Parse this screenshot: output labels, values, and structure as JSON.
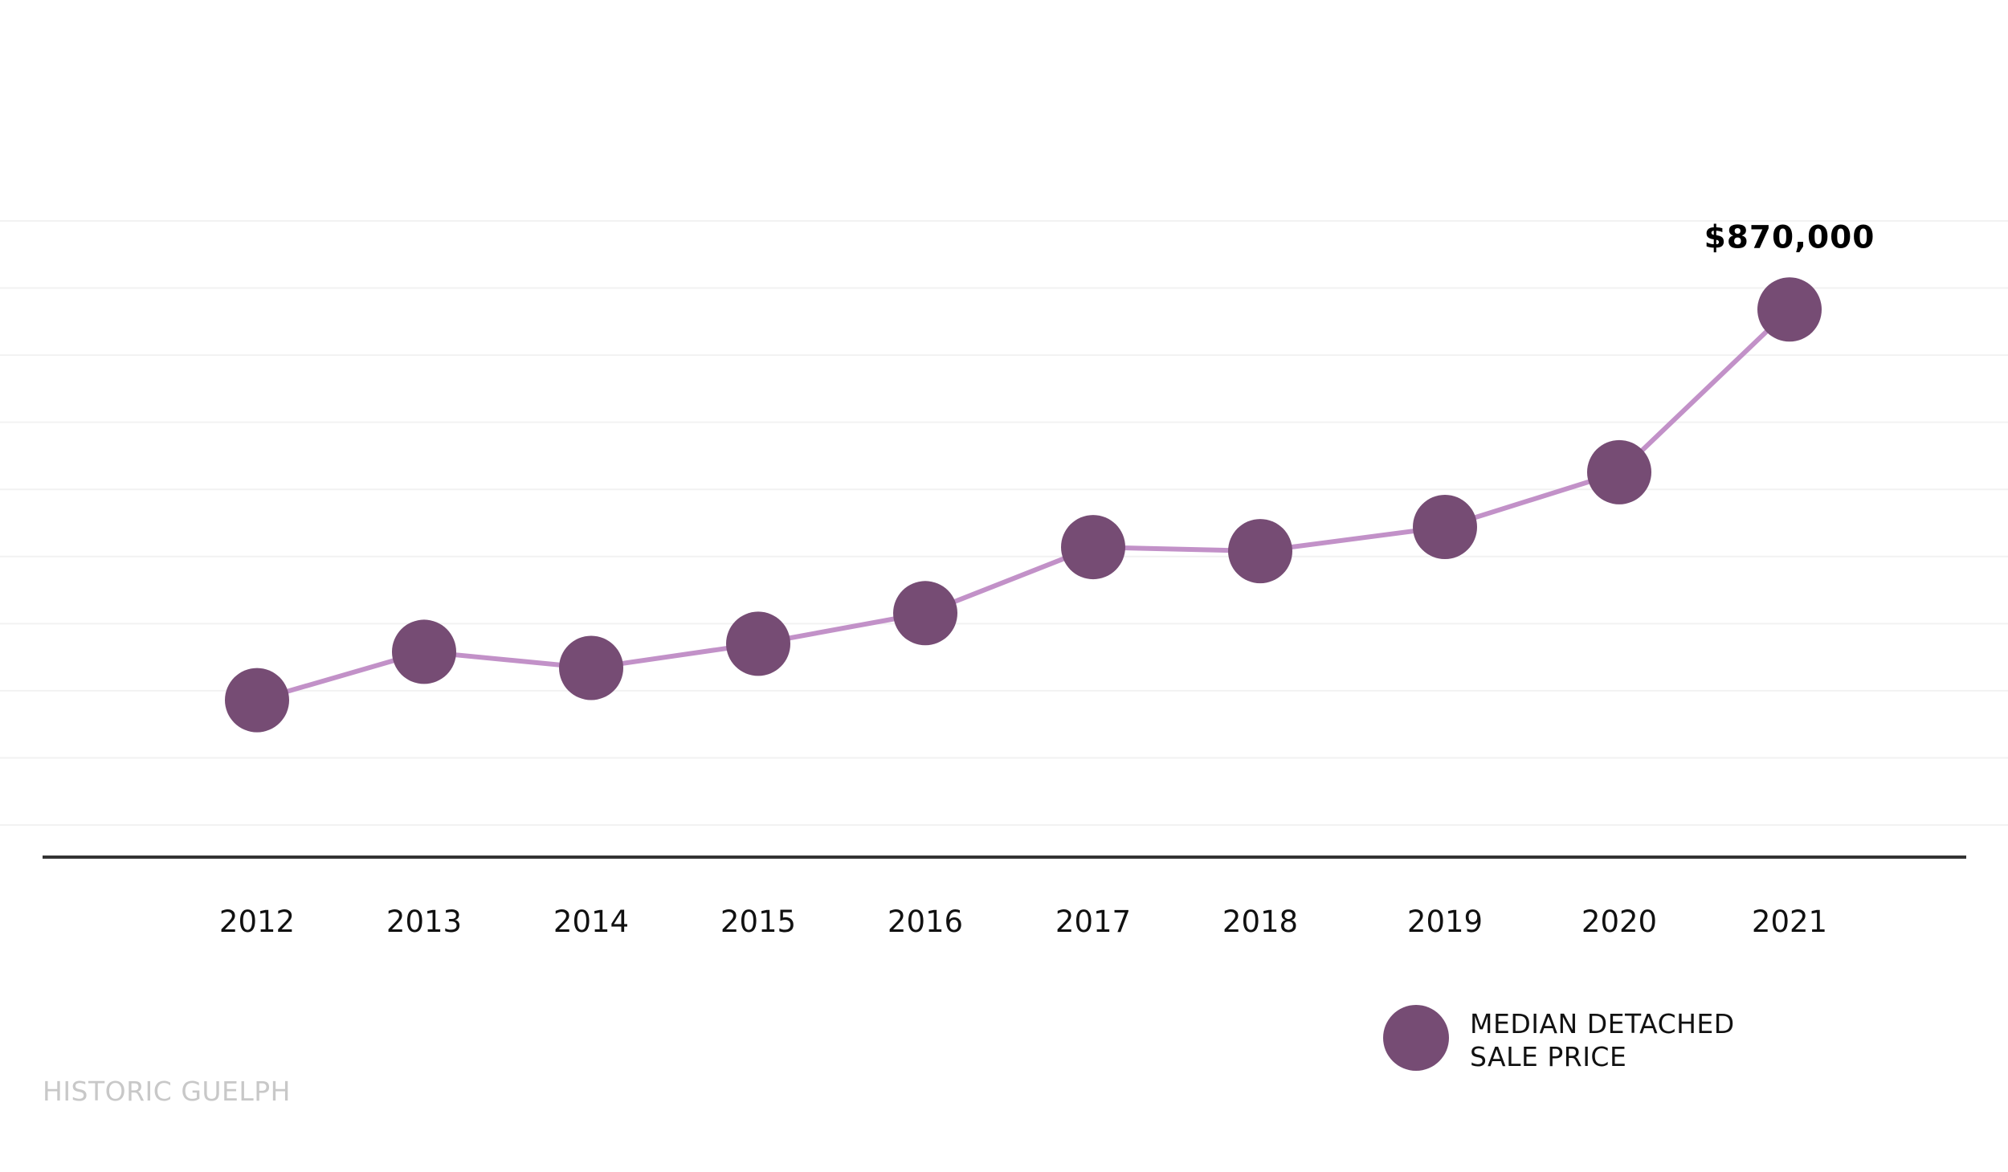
{
  "chart_data": {
    "type": "line",
    "x": [
      "2012",
      "2013",
      "2014",
      "2015",
      "2016",
      "2017",
      "2018",
      "2019",
      "2020",
      "2021"
    ],
    "series": [
      {
        "name": "MEDIAN DETACHED SALE PRICE",
        "values": [
          385000,
          445000,
          425000,
          455000,
          493000,
          575000,
          570000,
          600000,
          668000,
          870000
        ],
        "data_labels": {
          "9": "$870,000"
        }
      }
    ],
    "legend": {
      "position": "bottom-right",
      "lines": [
        "MEDIAN DETACHED",
        "SALE PRICE"
      ]
    },
    "ylim": [
      230000,
      980000
    ],
    "grid": true,
    "grid_lines": 10,
    "colors": {
      "line": "#c291c8",
      "marker": "#764c74",
      "axis": "#333333",
      "grid": "#f2f2f2"
    }
  },
  "footer": {
    "source": "HISTORIC GUELPH"
  }
}
